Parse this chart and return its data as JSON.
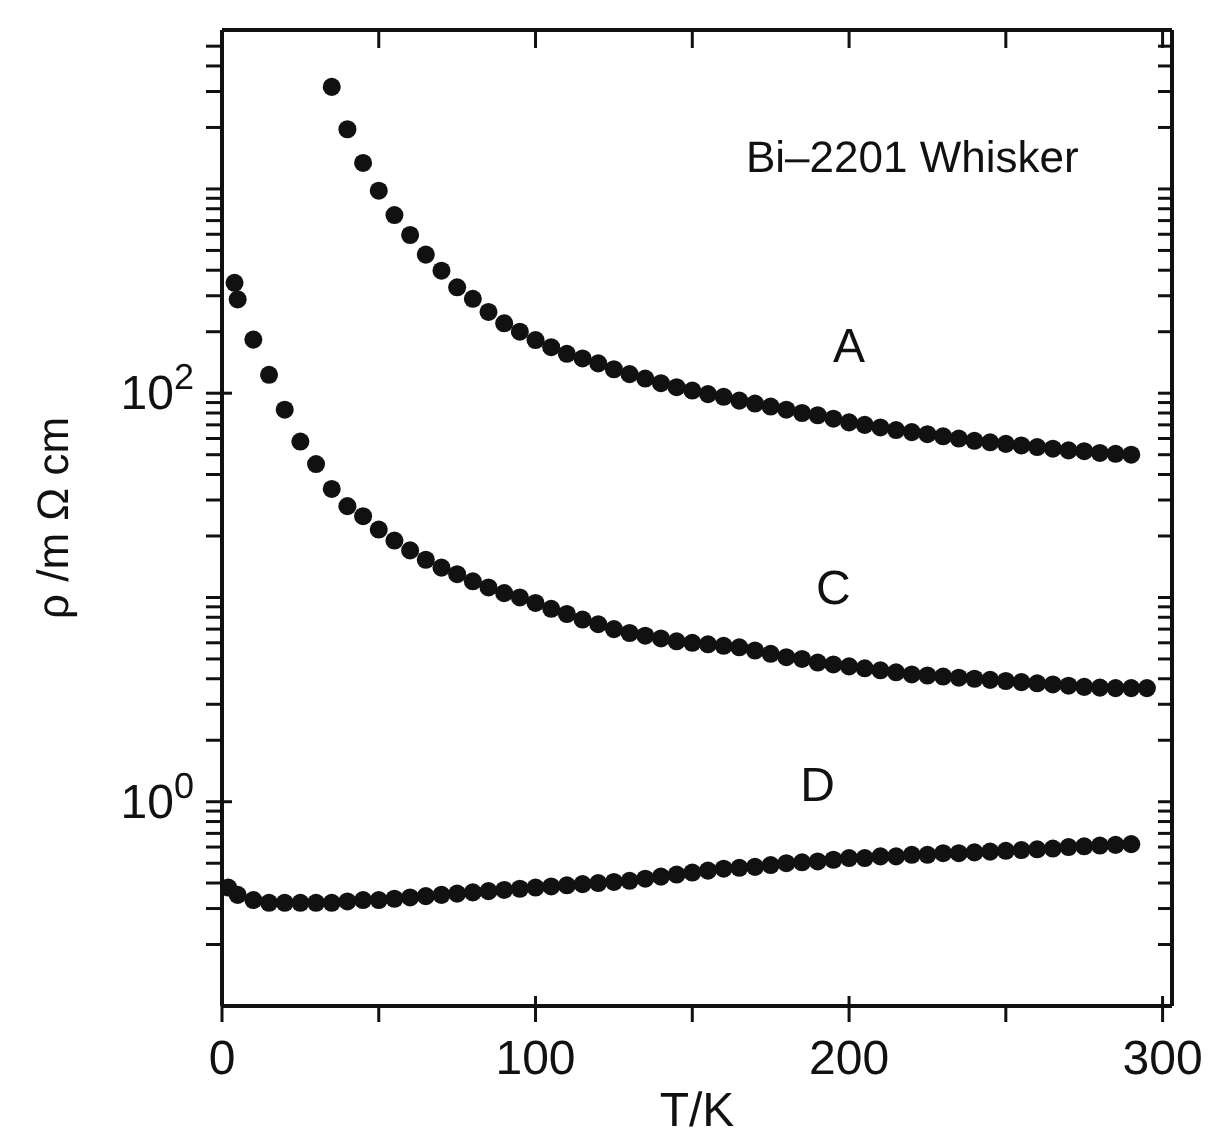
{
  "chart_data": {
    "type": "scatter",
    "title": "Bi–2201 Whisker",
    "xlabel": "T/K",
    "ylabel": "ρ /m Ω cm",
    "log": "y",
    "marker": "circle",
    "xlim": [
      0,
      303
    ],
    "xticks": [
      0,
      {
        "value": 50,
        "label": null
      },
      100,
      {
        "value": 150,
        "label": null
      },
      200,
      {
        "value": 250,
        "label": null
      },
      300
    ],
    "ylim": [
      0.1,
      6000
    ],
    "yticks": [
      {
        "value": 0.2,
        "label": null
      },
      {
        "value": 0.3,
        "label": null
      },
      {
        "value": 0.4,
        "label": null
      },
      {
        "value": 0.5,
        "label": null
      },
      {
        "value": 0.6,
        "label": null
      },
      {
        "value": 0.7,
        "label": null
      },
      {
        "value": 0.8,
        "label": null
      },
      {
        "value": 0.9,
        "label": null
      },
      {
        "value": 1,
        "label": "10$^{0}$"
      },
      {
        "value": 2,
        "label": null
      },
      {
        "value": 3,
        "label": null
      },
      {
        "value": 4,
        "label": null
      },
      {
        "value": 5,
        "label": null
      },
      {
        "value": 6,
        "label": null
      },
      {
        "value": 7,
        "label": null
      },
      {
        "value": 8,
        "label": null
      },
      {
        "value": 9,
        "label": null
      },
      {
        "value": 10,
        "label": null
      },
      {
        "value": 20,
        "label": null
      },
      {
        "value": 30,
        "label": null
      },
      {
        "value": 40,
        "label": null
      },
      {
        "value": 50,
        "label": null
      },
      {
        "value": 60,
        "label": null
      },
      {
        "value": 70,
        "label": null
      },
      {
        "value": 80,
        "label": null
      },
      {
        "value": 90,
        "label": null
      },
      {
        "value": 100,
        "label": "10$^{2}$"
      },
      {
        "value": 200,
        "label": null
      },
      {
        "value": 300,
        "label": null
      },
      {
        "value": 400,
        "label": null
      },
      {
        "value": 500,
        "label": null
      },
      {
        "value": 600,
        "label": null
      },
      {
        "value": 700,
        "label": null
      },
      {
        "value": 800,
        "label": null
      },
      {
        "value": 900,
        "label": null
      },
      {
        "value": 1000,
        "label": null
      },
      {
        "value": 2000,
        "label": null
      },
      {
        "value": 3000,
        "label": null
      },
      {
        "value": 4000,
        "label": null
      },
      {
        "value": 5000,
        "label": null
      }
    ],
    "series": [
      {
        "name": "A",
        "color": "#111111",
        "x": [
          35,
          40,
          45,
          50,
          55,
          60,
          65,
          70,
          75,
          80,
          85,
          90,
          95,
          100,
          105,
          110,
          115,
          120,
          125,
          130,
          135,
          140,
          145,
          150,
          155,
          160,
          165,
          170,
          175,
          180,
          185,
          190,
          195,
          200,
          205,
          210,
          215,
          220,
          225,
          230,
          235,
          240,
          245,
          250,
          255,
          260,
          265,
          270,
          275,
          280,
          285,
          290
        ],
        "values": [
          3160,
          1960,
          1340,
          980,
          745,
          595,
          477,
          398,
          330,
          290,
          250,
          220,
          200,
          182,
          168,
          156,
          148,
          140,
          131,
          124,
          118,
          112,
          107,
          103,
          99,
          96,
          92,
          89,
          86,
          83,
          80,
          78,
          75,
          72,
          70,
          68,
          66,
          64.5,
          63,
          61.5,
          60,
          58.5,
          57.5,
          56.5,
          55.5,
          54.5,
          53.5,
          52.5,
          52,
          51,
          50.5,
          50
        ]
      },
      {
        "name": "C",
        "color": "#111111",
        "x": [
          4,
          5,
          10,
          15,
          20,
          25,
          30,
          35,
          40,
          45,
          50,
          55,
          60,
          65,
          70,
          75,
          80,
          85,
          90,
          95,
          100,
          105,
          110,
          115,
          120,
          125,
          130,
          135,
          140,
          145,
          150,
          155,
          160,
          165,
          170,
          175,
          180,
          185,
          190,
          195,
          200,
          205,
          210,
          215,
          220,
          225,
          230,
          235,
          240,
          245,
          250,
          255,
          260,
          265,
          270,
          275,
          280,
          285,
          290,
          295
        ],
        "values": [
          347,
          288,
          183,
          123,
          83,
          58,
          45,
          34,
          28,
          25,
          21.5,
          19,
          17,
          15.3,
          14,
          13,
          12,
          11.2,
          10.5,
          10,
          9.4,
          8.8,
          8.3,
          7.8,
          7.4,
          7.0,
          6.7,
          6.5,
          6.3,
          6.1,
          6.0,
          5.9,
          5.8,
          5.7,
          5.5,
          5.3,
          5.1,
          5.0,
          4.8,
          4.7,
          4.6,
          4.5,
          4.4,
          4.3,
          4.2,
          4.15,
          4.1,
          4.05,
          4.0,
          3.95,
          3.9,
          3.85,
          3.8,
          3.75,
          3.7,
          3.65,
          3.62,
          3.6,
          3.6,
          3.6
        ]
      },
      {
        "name": "D",
        "color": "#111111",
        "x": [
          2,
          5,
          10,
          15,
          20,
          25,
          30,
          35,
          40,
          45,
          50,
          55,
          60,
          65,
          70,
          75,
          80,
          85,
          90,
          95,
          100,
          105,
          110,
          115,
          120,
          125,
          130,
          135,
          140,
          145,
          150,
          155,
          160,
          165,
          170,
          175,
          180,
          185,
          190,
          195,
          200,
          205,
          210,
          215,
          220,
          225,
          230,
          235,
          240,
          245,
          250,
          255,
          260,
          265,
          270,
          275,
          280,
          285,
          290
        ],
        "values": [
          0.38,
          0.35,
          0.33,
          0.32,
          0.32,
          0.32,
          0.32,
          0.32,
          0.325,
          0.33,
          0.33,
          0.335,
          0.34,
          0.345,
          0.35,
          0.355,
          0.36,
          0.365,
          0.37,
          0.375,
          0.38,
          0.385,
          0.39,
          0.395,
          0.4,
          0.405,
          0.41,
          0.42,
          0.43,
          0.44,
          0.45,
          0.46,
          0.47,
          0.475,
          0.48,
          0.49,
          0.5,
          0.505,
          0.51,
          0.52,
          0.53,
          0.53,
          0.54,
          0.54,
          0.55,
          0.55,
          0.56,
          0.56,
          0.565,
          0.57,
          0.575,
          0.58,
          0.585,
          0.59,
          0.6,
          0.605,
          0.61,
          0.615,
          0.62
        ]
      }
    ]
  }
}
